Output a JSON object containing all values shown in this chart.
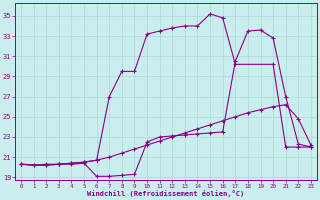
{
  "xlabel": "Windchill (Refroidissement éolien,°C)",
  "bg_color": "#caeeed",
  "grid_color": "#a8d8d8",
  "line_color": "#880088",
  "xlim": [
    0,
    23
  ],
  "ylim": [
    19,
    36
  ],
  "yticks": [
    19,
    21,
    23,
    25,
    27,
    29,
    31,
    33,
    35
  ],
  "xticks": [
    0,
    1,
    2,
    3,
    4,
    5,
    6,
    7,
    8,
    9,
    10,
    11,
    12,
    13,
    14,
    15,
    16,
    17,
    18,
    19,
    20,
    21,
    22,
    23
  ],
  "series": {
    "line1_x": [
      0,
      1,
      2,
      3,
      4,
      5,
      6,
      7,
      8,
      9,
      10,
      11,
      12,
      13,
      14,
      15,
      16,
      17,
      18,
      19,
      20,
      21,
      22,
      23
    ],
    "line1_y": [
      20.3,
      20.2,
      20.2,
      20.3,
      20.4,
      20.5,
      20.7,
      21.0,
      21.4,
      21.8,
      22.2,
      22.6,
      23.0,
      23.4,
      23.8,
      24.2,
      24.6,
      25.0,
      25.4,
      25.7,
      26.0,
      26.2,
      24.8,
      22.2
    ],
    "line2_x": [
      0,
      2,
      3,
      4,
      5,
      6,
      7,
      8,
      9,
      10,
      11,
      12,
      13,
      14,
      15,
      16,
      17,
      20,
      21,
      22,
      23
    ],
    "line2_y": [
      20.3,
      20.2,
      20.3,
      20.4,
      20.5,
      20.7,
      27.0,
      29.5,
      29.5,
      33.2,
      33.5,
      33.8,
      34.0,
      34.0,
      35.2,
      34.8,
      30.2,
      30.2,
      22.0,
      22.0,
      22.0
    ],
    "line3_x": [
      0,
      1,
      2,
      3,
      4,
      5,
      6,
      7,
      8,
      9,
      10,
      11,
      12,
      13,
      14,
      15,
      16,
      17,
      18,
      19,
      20,
      21,
      22,
      23
    ],
    "line3_y": [
      20.3,
      20.2,
      20.3,
      20.3,
      20.3,
      20.4,
      19.1,
      19.1,
      19.2,
      19.3,
      22.5,
      23.0,
      23.1,
      23.2,
      23.3,
      23.4,
      23.5,
      30.5,
      33.5,
      33.6,
      32.8,
      27.0,
      22.3,
      22.0
    ]
  }
}
